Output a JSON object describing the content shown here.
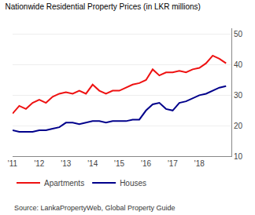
{
  "chart_data": {
    "type": "line",
    "title": "Nationwide Residential Property Prices (in LKR millions)",
    "annotations": [
      "Source: LankaPropertyWeb, Global Property Guide"
    ],
    "x": [
      2011.0,
      2011.25,
      2011.5,
      2011.75,
      2012.0,
      2012.25,
      2012.5,
      2012.75,
      2013.0,
      2013.25,
      2013.5,
      2013.75,
      2014.0,
      2014.25,
      2014.5,
      2014.75,
      2015.0,
      2015.25,
      2015.5,
      2015.75,
      2016.0,
      2016.25,
      2016.5,
      2016.75,
      2017.0,
      2017.25,
      2017.5,
      2017.75,
      2018.0,
      2018.25,
      2018.5,
      2018.75,
      2019.0
    ],
    "series": [
      {
        "name": "Apartments",
        "color": "#ee1111",
        "values": [
          24.0,
          26.5,
          25.5,
          27.5,
          28.5,
          27.5,
          29.5,
          30.5,
          31.0,
          30.5,
          31.5,
          30.5,
          33.5,
          31.5,
          30.5,
          31.5,
          31.5,
          32.5,
          33.5,
          34.0,
          35.0,
          38.5,
          36.5,
          37.5,
          37.5,
          38.0,
          37.5,
          38.5,
          39.0,
          40.5,
          43.0,
          42.0,
          40.5
        ]
      },
      {
        "name": "Houses",
        "color": "#00008b",
        "values": [
          18.5,
          18.0,
          18.0,
          18.0,
          18.5,
          18.5,
          19.0,
          19.5,
          21.0,
          21.0,
          20.5,
          21.0,
          21.5,
          21.5,
          21.0,
          21.5,
          21.5,
          21.5,
          22.0,
          22.0,
          25.0,
          27.0,
          27.5,
          25.5,
          25.0,
          27.5,
          28.0,
          29.0,
          30.0,
          30.5,
          31.5,
          32.5,
          33.0
        ]
      }
    ],
    "xlim": [
      2011.0,
      2019.2
    ],
    "xticks": [
      {
        "value": 2011,
        "label": "'11"
      },
      {
        "value": 2012,
        "label": "'12"
      },
      {
        "value": 2013,
        "label": "'13"
      },
      {
        "value": 2014,
        "label": "'14"
      },
      {
        "value": 2015,
        "label": "'15"
      },
      {
        "value": 2016,
        "label": "'16"
      },
      {
        "value": 2017,
        "label": "'17"
      },
      {
        "value": 2018,
        "label": "'18"
      }
    ],
    "ylim": [
      10,
      52
    ],
    "yticks": [
      10,
      20,
      30,
      40,
      50
    ],
    "grid": true,
    "legend": "lower left"
  }
}
